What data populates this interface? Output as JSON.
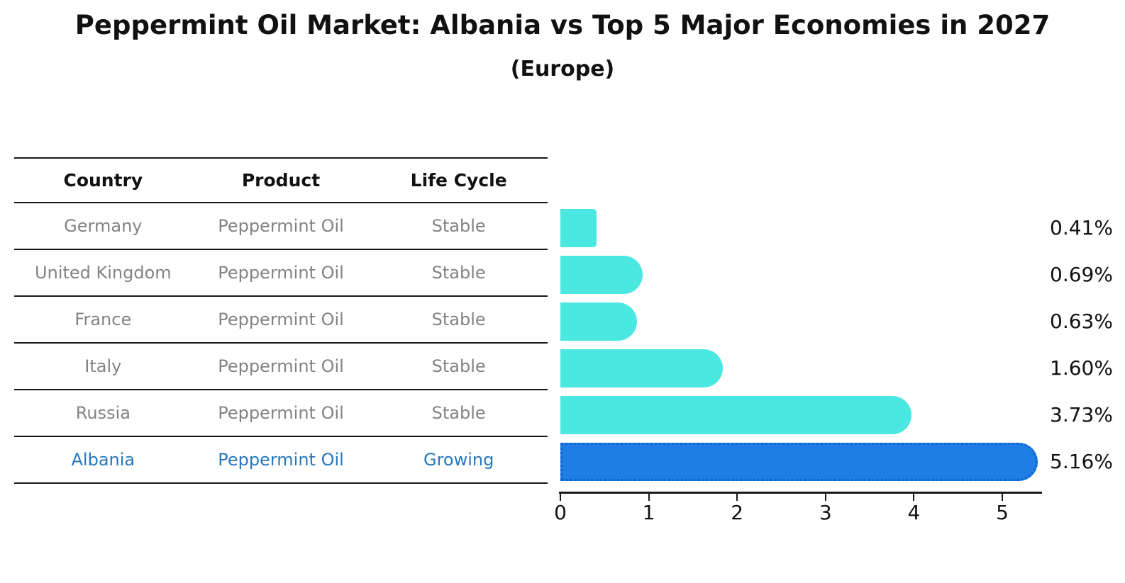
{
  "figure": {
    "title": "Peppermint Oil Market: Albania vs Top 5 Major Economies in 2027",
    "subtitle": "(Europe)"
  },
  "table": {
    "headers": [
      "Country",
      "Product",
      "Life Cycle"
    ],
    "rows": [
      {
        "country": "Germany",
        "product": "Peppermint Oil",
        "life_cycle": "Stable",
        "highlight": false
      },
      {
        "country": "United Kingdom",
        "product": "Peppermint Oil",
        "life_cycle": "Stable",
        "highlight": false
      },
      {
        "country": "France",
        "product": "Peppermint Oil",
        "life_cycle": "Stable",
        "highlight": false
      },
      {
        "country": "Italy",
        "product": "Peppermint Oil",
        "life_cycle": "Stable",
        "highlight": false
      },
      {
        "country": "Russia",
        "product": "Peppermint Oil",
        "life_cycle": "Stable",
        "highlight": false
      },
      {
        "country": "Albania",
        "product": "Peppermint Oil",
        "life_cycle": "Growing",
        "highlight": true
      }
    ]
  },
  "chart_data": {
    "type": "bar",
    "orientation": "horizontal",
    "title": "Peppermint Oil Market: Albania vs Top 5 Major Economies in 2027 (Europe)",
    "categories": [
      "Germany",
      "United Kingdom",
      "France",
      "Italy",
      "Russia",
      "Albania"
    ],
    "values": [
      0.41,
      0.69,
      0.63,
      1.6,
      3.73,
      5.16
    ],
    "value_labels": [
      "0.41%",
      "0.69%",
      "0.63%",
      "1.60%",
      "3.73%",
      "5.16%"
    ],
    "xlabel": "",
    "ylabel": "",
    "xlim": [
      0,
      5.45
    ],
    "xticks": [
      0,
      1,
      2,
      3,
      4,
      5
    ],
    "grid": false,
    "legend": false,
    "highlight_index": 5,
    "colors": {
      "bar": "#4BE8E1",
      "highlight_bar": "#1E7EE5",
      "highlight_border": "#0E63CE",
      "axis": "#1a1a1a",
      "value_label_text": "#111111",
      "table_header_text": "#111111",
      "table_row_text": "#838383",
      "table_highlight_text": "#2878BE"
    }
  }
}
